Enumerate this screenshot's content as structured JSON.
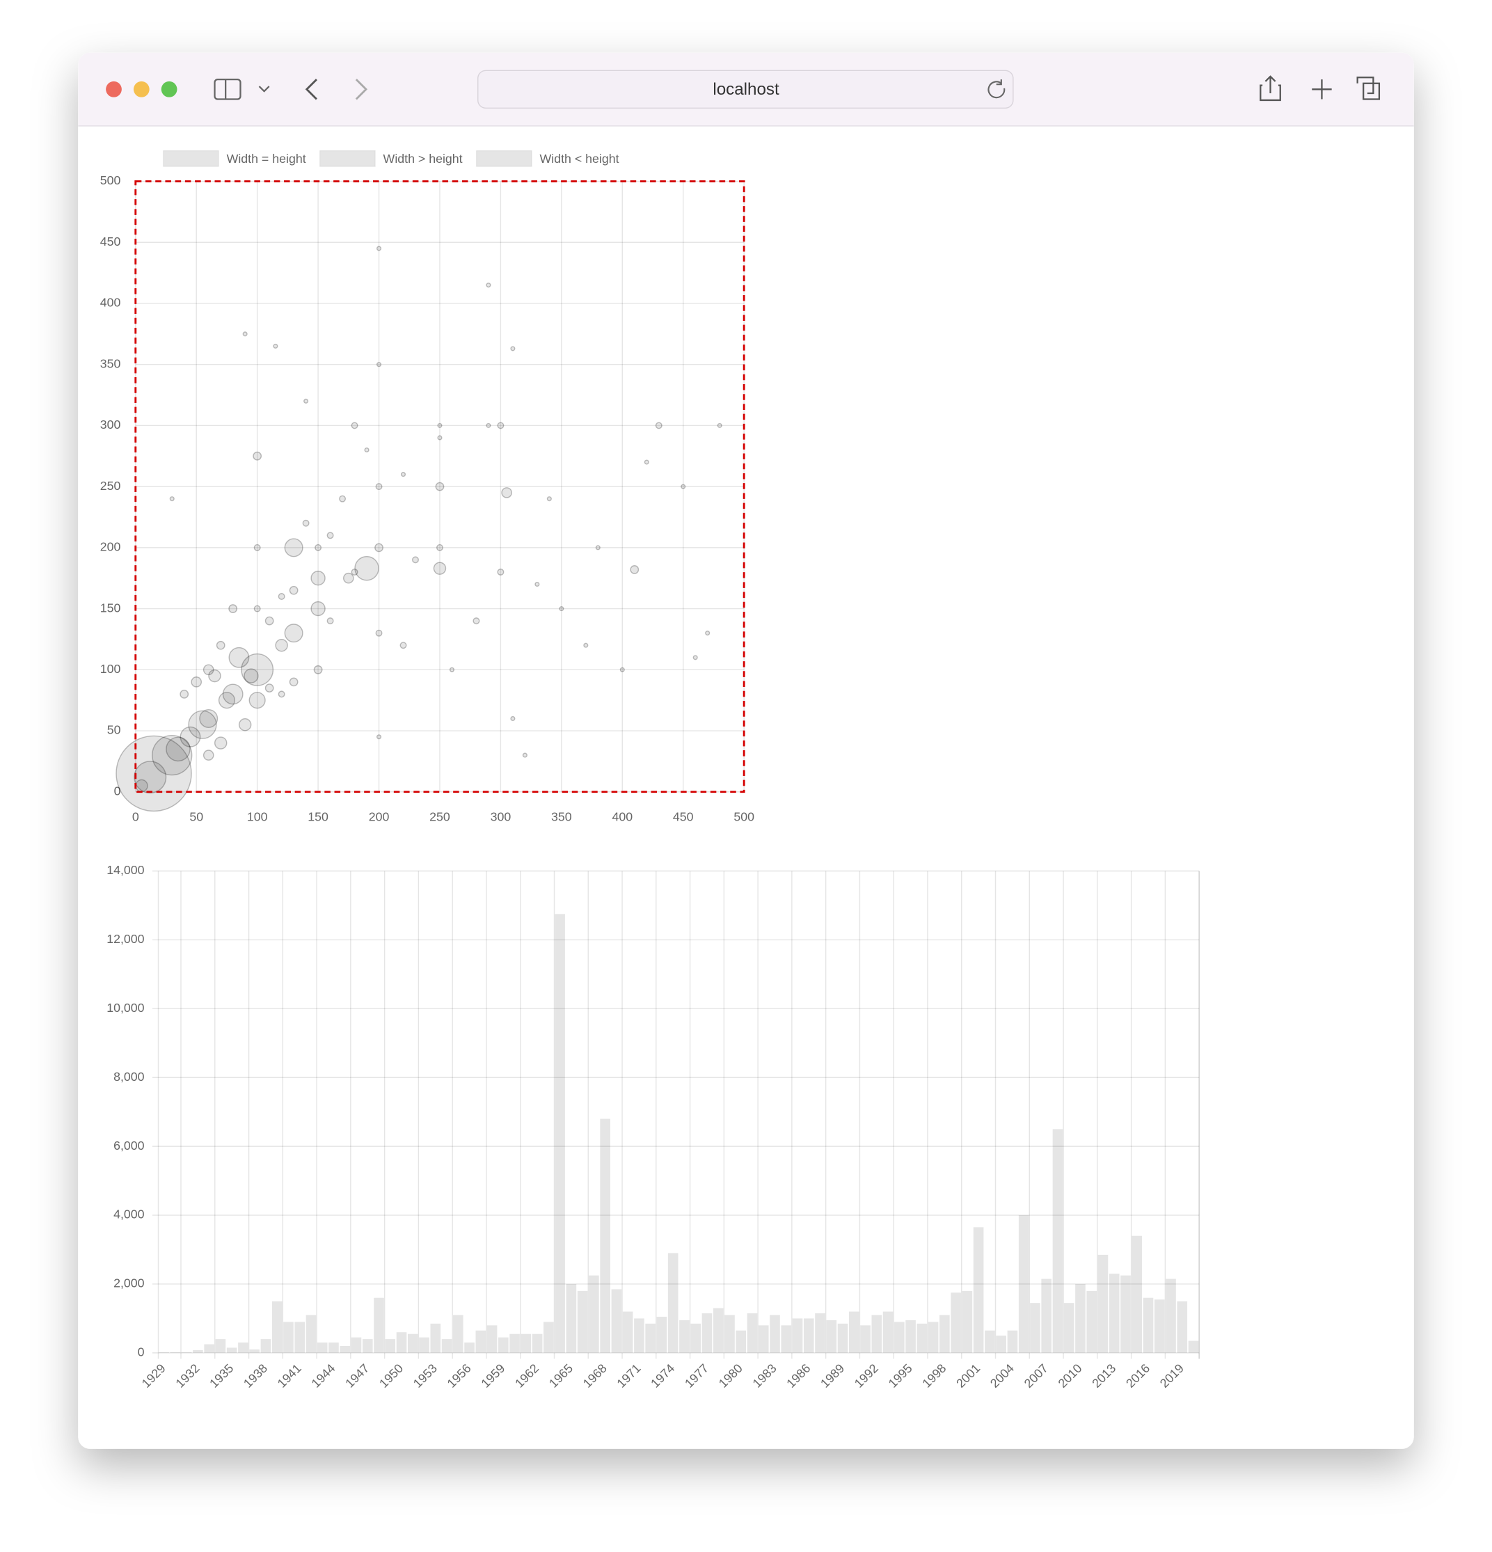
{
  "browser": {
    "url": "localhost"
  },
  "chart_data": [
    {
      "type": "scatter",
      "grid": true,
      "xlim": [
        0,
        500
      ],
      "ylim": [
        0,
        500
      ],
      "xticks": [
        0,
        50,
        100,
        150,
        200,
        250,
        300,
        350,
        400,
        450,
        500
      ],
      "yticks": [
        0,
        50,
        100,
        150,
        200,
        250,
        300,
        350,
        400,
        450,
        500
      ],
      "series": [
        {
          "name": "Width = height",
          "color": "rgba(0,0,0,0.1)",
          "x": [
            15,
            5,
            12,
            30,
            35,
            45,
            55,
            60,
            75,
            80,
            95,
            100,
            120,
            130,
            150,
            175,
            200,
            250,
            300,
            180
          ],
          "values": [
            15,
            5,
            12,
            30,
            35,
            45,
            55,
            60,
            75,
            80,
            95,
            100,
            120,
            130,
            150,
            175,
            200,
            250,
            300,
            180
          ],
          "sizes": [
            38,
            6,
            16,
            20,
            12,
            10,
            14,
            9,
            8,
            10,
            7,
            16,
            6,
            9,
            7,
            5,
            4,
            4,
            3,
            3
          ]
        },
        {
          "name": "Width > height",
          "color": "rgba(0,0,0,0.1)",
          "x": [
            120,
            200,
            300,
            350,
            450,
            400,
            250,
            190,
            310,
            420,
            480,
            150,
            230,
            280,
            260,
            380,
            470,
            340,
            220,
            100,
            90,
            70,
            60,
            130,
            320,
            200,
            410,
            330,
            305,
            250,
            460,
            370,
            430,
            160,
            110
          ],
          "values": [
            80,
            130,
            180,
            150,
            250,
            100,
            200,
            183,
            60,
            270,
            300,
            100,
            190,
            140,
            100,
            200,
            130,
            240,
            120,
            75,
            55,
            40,
            30,
            90,
            30,
            45,
            182,
            170,
            245,
            183,
            110,
            120,
            300,
            140,
            85
          ],
          "sizes": [
            3,
            3,
            3,
            2,
            2,
            2,
            3,
            12,
            2,
            2,
            2,
            4,
            3,
            3,
            2,
            2,
            2,
            2,
            3,
            8,
            6,
            6,
            5,
            4,
            2,
            2,
            4,
            2,
            5,
            6,
            2,
            2,
            3,
            3,
            4
          ]
        },
        {
          "name": "Width < height",
          "color": "rgba(0,0,0,0.1)",
          "x": [
            100,
            90,
            115,
            200,
            290,
            310,
            30,
            140,
            180,
            200,
            250,
            150,
            130,
            100,
            80,
            60,
            40,
            120,
            170,
            200,
            220,
            250,
            290,
            100,
            130,
            50,
            70,
            140,
            160,
            190,
            150,
            110,
            85,
            65
          ],
          "values": [
            275,
            375,
            365,
            445,
            415,
            363,
            240,
            320,
            300,
            350,
            300,
            200,
            200,
            200,
            150,
            100,
            80,
            160,
            240,
            250,
            260,
            290,
            300,
            150,
            165,
            90,
            120,
            220,
            210,
            280,
            175,
            140,
            110,
            95
          ],
          "sizes": [
            4,
            2,
            2,
            2,
            2,
            2,
            2,
            2,
            3,
            2,
            2,
            3,
            9,
            3,
            4,
            5,
            4,
            3,
            3,
            3,
            2,
            2,
            2,
            3,
            4,
            5,
            4,
            3,
            3,
            2,
            7,
            4,
            10,
            6
          ]
        }
      ]
    },
    {
      "type": "bar",
      "grid": true,
      "color": "rgba(0,0,0,0.1)",
      "categories": [
        "1929",
        null,
        null,
        "1932",
        null,
        null,
        "1935",
        null,
        null,
        "1938",
        null,
        null,
        "1941",
        null,
        null,
        "1944",
        null,
        null,
        "1947",
        null,
        null,
        "1950",
        null,
        null,
        "1953",
        null,
        null,
        "1956",
        null,
        null,
        "1959",
        null,
        null,
        "1962",
        null,
        null,
        "1965",
        null,
        null,
        "1968",
        null,
        null,
        "1971",
        null,
        null,
        "1974",
        null,
        null,
        "1977",
        null,
        null,
        "1980",
        null,
        null,
        "1983",
        null,
        null,
        "1986",
        null,
        null,
        "1989",
        null,
        null,
        "1992",
        null,
        null,
        "1995",
        null,
        null,
        "1998",
        null,
        null,
        "2001",
        null,
        null,
        "2004",
        null,
        null,
        "2007",
        null,
        null,
        "2010",
        null,
        null,
        "2013",
        null,
        null,
        "2016",
        null,
        null,
        "2019",
        null
      ],
      "values": [
        20,
        20,
        20,
        80,
        250,
        400,
        150,
        300,
        100,
        400,
        1500,
        900,
        900,
        1100,
        300,
        300,
        200,
        450,
        400,
        1600,
        400,
        600,
        550,
        450,
        850,
        400,
        1100,
        300,
        650,
        800,
        450,
        550,
        550,
        550,
        900,
        12750,
        2000,
        1800,
        2250,
        6800,
        1850,
        1200,
        1000,
        850,
        1050,
        2900,
        950,
        850,
        1150,
        1300,
        1100,
        650,
        1150,
        800,
        1100,
        800,
        1000,
        1000,
        1150,
        950,
        850,
        1200,
        800,
        1100,
        1200,
        900,
        950,
        850,
        900,
        1100,
        1750,
        1800,
        3650,
        650,
        500,
        650,
        4000,
        1450,
        2150,
        6500,
        1450,
        2000,
        1800,
        2850,
        2300,
        2250,
        3400,
        1600,
        1550,
        2150,
        1500,
        350
      ],
      "ylim": [
        0,
        14000
      ],
      "yticks": [
        0,
        {
          "value": 2000,
          "label": "2,000"
        },
        {
          "value": 4000,
          "label": "4,000"
        },
        {
          "value": 6000,
          "label": "6,000"
        },
        {
          "value": 8000,
          "label": "8,000"
        },
        {
          "value": 10000,
          "label": "10,000"
        },
        {
          "value": 12000,
          "label": "12,000"
        },
        {
          "value": 14000,
          "label": "14,000"
        }
      ]
    }
  ]
}
